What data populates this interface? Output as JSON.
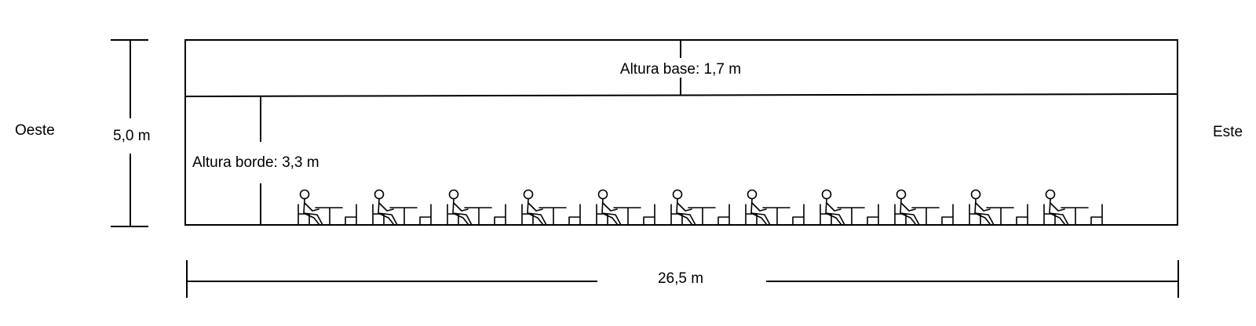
{
  "labels": {
    "west": "Oeste",
    "east": "Este",
    "height_total": "5,0 m",
    "width_total": "26,5 m",
    "base_height": "Altura base: 1,7 m",
    "edge_height": "Altura borde: 3,3 m"
  },
  "seating": {
    "count": 11,
    "icon": "seated-person-at-desk-icon"
  },
  "colors": {
    "line": "#000000",
    "background": "#ffffff"
  }
}
